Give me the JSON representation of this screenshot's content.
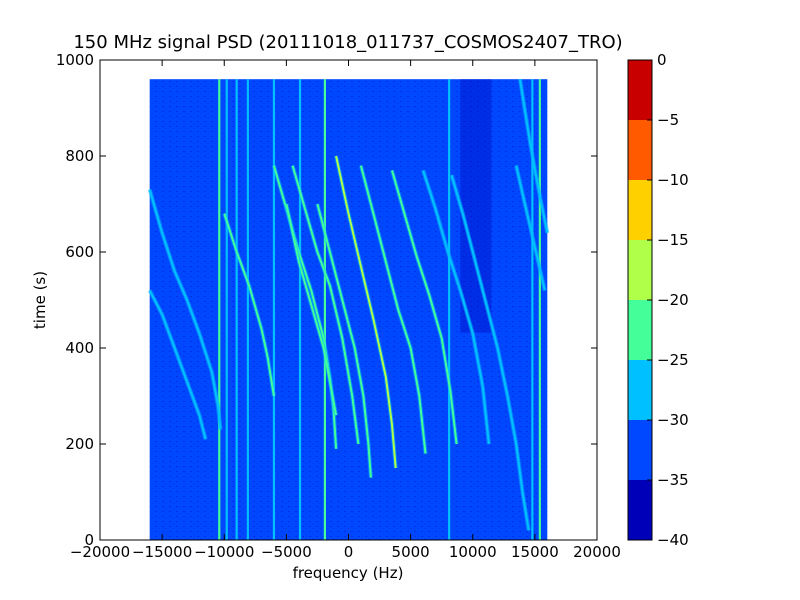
{
  "chart_data": {
    "type": "heatmap",
    "title": "150 MHz signal PSD (20111018_011737_COSMOS2407_TRO)",
    "xlabel": "frequency (Hz)",
    "ylabel": "time (s)",
    "xlim": [
      -20000,
      20000
    ],
    "ylim": [
      0,
      1000
    ],
    "x_ticks": [
      -20000,
      -15000,
      -10000,
      -5000,
      0,
      5000,
      10000,
      15000,
      20000
    ],
    "x_tick_labels": [
      "−20000",
      "−15000",
      "−10000",
      "−5000",
      "0",
      "5000",
      "10000",
      "15000",
      "20000"
    ],
    "y_ticks": [
      0,
      200,
      400,
      600,
      800,
      1000
    ],
    "y_tick_labels": [
      "0",
      "200",
      "400",
      "600",
      "800",
      "1000"
    ],
    "data_extent": {
      "x": [
        -16000,
        16000
      ],
      "y": [
        0,
        960
      ]
    },
    "background_level": -32,
    "colorbar": {
      "range": [
        -40,
        0
      ],
      "ticks": [
        0,
        -5,
        -10,
        -15,
        -20,
        -25,
        -30,
        -35,
        -40
      ],
      "tick_labels": [
        "0",
        "−5",
        "−10",
        "−15",
        "−20",
        "−25",
        "−30",
        "−35",
        "−40"
      ],
      "bands": [
        {
          "from": -40,
          "to": -35,
          "color": "#0000b8"
        },
        {
          "from": -35,
          "to": -30,
          "color": "#0048ff"
        },
        {
          "from": -30,
          "to": -25,
          "color": "#00c0ff"
        },
        {
          "from": -25,
          "to": -20,
          "color": "#44ff99"
        },
        {
          "from": -20,
          "to": -15,
          "color": "#b0ff48"
        },
        {
          "from": -15,
          "to": -10,
          "color": "#ffd000"
        },
        {
          "from": -10,
          "to": -5,
          "color": "#ff5a00"
        },
        {
          "from": -5,
          "to": 0,
          "color": "#c80000"
        }
      ]
    },
    "vertical_lines": [
      {
        "x": -10400,
        "level": -22
      },
      {
        "x": -9800,
        "level": -27
      },
      {
        "x": -9000,
        "level": -27
      },
      {
        "x": -8100,
        "level": -27
      },
      {
        "x": -6000,
        "level": -26
      },
      {
        "x": -3900,
        "level": -28
      },
      {
        "x": -1900,
        "level": -22
      },
      {
        "x": 8100,
        "level": -28
      },
      {
        "x": 14800,
        "level": -28
      },
      {
        "x": 15400,
        "level": -22
      }
    ],
    "tracks": [
      {
        "level": -26,
        "points": [
          [
            -16000,
            730
          ],
          [
            -15000,
            640
          ],
          [
            -14000,
            560
          ],
          [
            -13000,
            500
          ],
          [
            -12000,
            430
          ],
          [
            -11000,
            350
          ],
          [
            -10500,
            280
          ],
          [
            -10300,
            230
          ]
        ]
      },
      {
        "level": -27,
        "points": [
          [
            -16000,
            520
          ],
          [
            -15000,
            470
          ],
          [
            -14000,
            400
          ],
          [
            -13000,
            330
          ],
          [
            -12000,
            260
          ],
          [
            -11500,
            210
          ]
        ]
      },
      {
        "level": -25,
        "points": [
          [
            -10000,
            680
          ],
          [
            -9000,
            600
          ],
          [
            -8000,
            530
          ],
          [
            -7000,
            440
          ],
          [
            -6500,
            380
          ],
          [
            -6000,
            300
          ]
        ]
      },
      {
        "level": -24,
        "points": [
          [
            -6000,
            780
          ],
          [
            -5000,
            690
          ],
          [
            -4000,
            600
          ],
          [
            -3000,
            520
          ],
          [
            -2000,
            420
          ],
          [
            -1500,
            340
          ],
          [
            -1200,
            270
          ],
          [
            -1000,
            190
          ]
        ]
      },
      {
        "level": -25,
        "points": [
          [
            -5000,
            700
          ],
          [
            -4000,
            580
          ],
          [
            -3000,
            490
          ],
          [
            -2000,
            400
          ],
          [
            -1500,
            330
          ],
          [
            -1000,
            260
          ]
        ]
      },
      {
        "level": -24,
        "points": [
          [
            -4500,
            780
          ],
          [
            -3500,
            690
          ],
          [
            -2500,
            600
          ],
          [
            -1500,
            530
          ],
          [
            -500,
            420
          ],
          [
            300,
            300
          ],
          [
            800,
            200
          ]
        ]
      },
      {
        "level": -24,
        "points": [
          [
            -2500,
            700
          ],
          [
            -1500,
            600
          ],
          [
            -500,
            500
          ],
          [
            500,
            400
          ],
          [
            1200,
            300
          ],
          [
            1600,
            200
          ],
          [
            1800,
            130
          ]
        ]
      },
      {
        "level": -18,
        "points": [
          [
            -1000,
            800
          ],
          [
            0,
            680
          ],
          [
            1000,
            570
          ],
          [
            2000,
            460
          ],
          [
            3000,
            340
          ],
          [
            3500,
            240
          ],
          [
            3800,
            150
          ]
        ]
      },
      {
        "level": -25,
        "points": [
          [
            1000,
            780
          ],
          [
            2000,
            680
          ],
          [
            3000,
            580
          ],
          [
            4000,
            480
          ],
          [
            5000,
            400
          ],
          [
            5700,
            300
          ],
          [
            6200,
            180
          ]
        ]
      },
      {
        "level": -25,
        "points": [
          [
            3500,
            770
          ],
          [
            4500,
            680
          ],
          [
            5500,
            590
          ],
          [
            6500,
            510
          ],
          [
            7500,
            420
          ],
          [
            8200,
            310
          ],
          [
            8700,
            200
          ]
        ]
      },
      {
        "level": -26,
        "points": [
          [
            6000,
            770
          ],
          [
            7000,
            690
          ],
          [
            8000,
            600
          ],
          [
            9000,
            520
          ],
          [
            10000,
            430
          ],
          [
            10800,
            320
          ],
          [
            11300,
            200
          ]
        ]
      },
      {
        "level": -26,
        "points": [
          [
            8300,
            760
          ],
          [
            9200,
            680
          ],
          [
            10000,
            600
          ],
          [
            11000,
            500
          ],
          [
            12000,
            400
          ],
          [
            12800,
            300
          ],
          [
            13500,
            200
          ],
          [
            14000,
            100
          ],
          [
            14500,
            20
          ]
        ]
      },
      {
        "level": -27,
        "points": [
          [
            13500,
            780
          ],
          [
            14200,
            700
          ],
          [
            15000,
            610
          ],
          [
            15800,
            520
          ]
        ]
      },
      {
        "level": -27,
        "points": [
          [
            13800,
            960
          ],
          [
            14600,
            830
          ],
          [
            15300,
            730
          ],
          [
            16000,
            640
          ]
        ]
      }
    ]
  }
}
